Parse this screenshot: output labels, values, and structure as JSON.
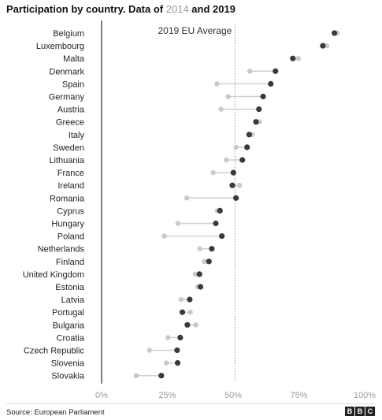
{
  "header": {
    "title_prefix": "Participation by country. Data of",
    "year_a": "2014",
    "conj": "and",
    "year_b": "2019"
  },
  "footer": {
    "source": "Source: European Parliament",
    "logo_letters": [
      "B",
      "B",
      "C"
    ]
  },
  "colors": {
    "dot_2019": "#3a3a3a",
    "dot_2014": "#c9c9c9",
    "connector": "#cfcfcf",
    "axis": "#555555",
    "average_line": "#999999",
    "tick_text": "#9a9a9a"
  },
  "chart_data": {
    "type": "dot",
    "title": "Participation by country. Data of 2014 and 2019",
    "xlim": [
      0,
      100
    ],
    "x_ticks": [
      "0%",
      "25%",
      "50%",
      "75%",
      "100%"
    ],
    "x_tick_values": [
      0,
      25,
      50,
      75,
      100
    ],
    "reference_line": {
      "label": "2019 EU Average",
      "value": 50.7
    },
    "categories": [
      "Belgium",
      "Luxembourg",
      "Malta",
      "Denmark",
      "Spain",
      "Germany",
      "Austria",
      "Greece",
      "Italy",
      "Sweden",
      "Lithuania",
      "France",
      "Ireland",
      "Romania",
      "Cyprus",
      "Hungary",
      "Poland",
      "Netherlands",
      "Finland",
      "United Kingdom",
      "Estonia",
      "Latvia",
      "Portugal",
      "Bulgaria",
      "Croatia",
      "Czech Republic",
      "Slovenia",
      "Slovakia"
    ],
    "series": [
      {
        "name": "2014",
        "values": [
          89.6,
          85.6,
          74.8,
          56.3,
          43.8,
          48.1,
          45.4,
          60.0,
          57.2,
          51.1,
          47.4,
          42.4,
          52.4,
          32.4,
          44.0,
          29.0,
          23.8,
          37.3,
          39.1,
          35.6,
          36.5,
          30.2,
          33.7,
          35.8,
          25.2,
          18.2,
          24.6,
          13.1
        ]
      },
      {
        "name": "2019",
        "values": [
          88.5,
          84.1,
          72.7,
          66.1,
          64.3,
          61.4,
          59.8,
          58.7,
          56.1,
          55.3,
          53.5,
          50.1,
          49.7,
          51.1,
          45.0,
          43.4,
          45.7,
          41.9,
          40.8,
          37.2,
          37.6,
          33.5,
          30.7,
          32.6,
          29.9,
          28.7,
          28.9,
          22.7
        ]
      }
    ]
  }
}
